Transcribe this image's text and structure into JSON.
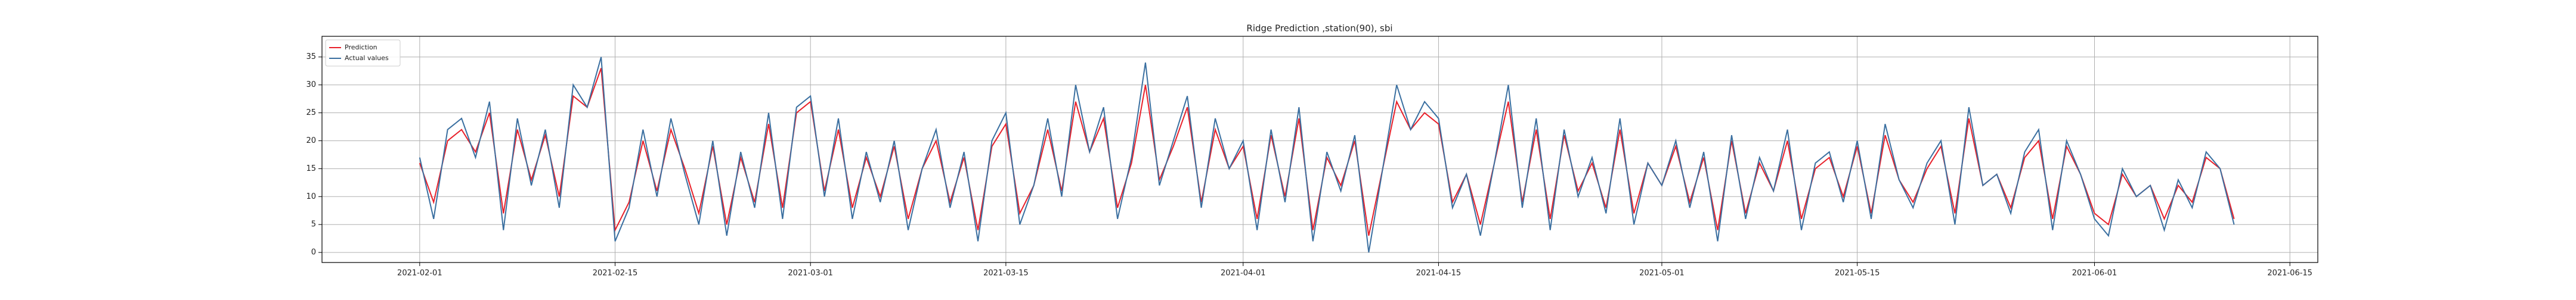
{
  "chart_data": {
    "type": "line",
    "title": "Ridge Prediction ,station(90), sbi",
    "x": [
      "2021-02-01",
      "2021-02-02",
      "2021-02-03",
      "2021-02-04",
      "2021-02-05",
      "2021-02-06",
      "2021-02-07",
      "2021-02-08",
      "2021-02-09",
      "2021-02-10",
      "2021-02-11",
      "2021-02-12",
      "2021-02-13",
      "2021-02-14",
      "2021-02-15",
      "2021-02-16",
      "2021-02-17",
      "2021-02-18",
      "2021-02-19",
      "2021-02-20",
      "2021-02-21",
      "2021-02-22",
      "2021-02-23",
      "2021-02-24",
      "2021-02-25",
      "2021-02-26",
      "2021-02-27",
      "2021-02-28",
      "2021-03-01",
      "2021-03-02",
      "2021-03-03",
      "2021-03-04",
      "2021-03-05",
      "2021-03-06",
      "2021-03-07",
      "2021-03-08",
      "2021-03-09",
      "2021-03-10",
      "2021-03-11",
      "2021-03-12",
      "2021-03-13",
      "2021-03-14",
      "2021-03-15",
      "2021-03-16",
      "2021-03-17",
      "2021-03-18",
      "2021-03-19",
      "2021-03-20",
      "2021-03-21",
      "2021-03-22",
      "2021-03-23",
      "2021-03-24",
      "2021-03-25",
      "2021-03-26",
      "2021-03-27",
      "2021-03-28",
      "2021-03-29",
      "2021-03-30",
      "2021-03-31",
      "2021-04-01",
      "2021-04-02",
      "2021-04-03",
      "2021-04-04",
      "2021-04-05",
      "2021-04-06",
      "2021-04-07",
      "2021-04-08",
      "2021-04-09",
      "2021-04-10",
      "2021-04-11",
      "2021-04-12",
      "2021-04-13",
      "2021-04-14",
      "2021-04-15",
      "2021-04-16",
      "2021-04-17",
      "2021-04-18",
      "2021-04-19",
      "2021-04-20",
      "2021-04-21",
      "2021-04-22",
      "2021-04-23",
      "2021-04-24",
      "2021-04-25",
      "2021-04-26",
      "2021-04-27",
      "2021-04-28",
      "2021-04-29",
      "2021-04-30",
      "2021-05-01",
      "2021-05-02",
      "2021-05-03",
      "2021-05-04",
      "2021-05-05",
      "2021-05-06",
      "2021-05-07",
      "2021-05-08",
      "2021-05-09",
      "2021-05-10",
      "2021-05-11",
      "2021-05-12",
      "2021-05-13",
      "2021-05-14",
      "2021-05-15",
      "2021-05-16",
      "2021-05-17",
      "2021-05-18",
      "2021-05-19",
      "2021-05-20",
      "2021-05-21",
      "2021-05-22",
      "2021-05-23",
      "2021-05-24",
      "2021-05-25",
      "2021-05-26",
      "2021-05-27",
      "2021-05-28",
      "2021-05-29",
      "2021-05-30",
      "2021-05-31",
      "2021-06-01",
      "2021-06-02",
      "2021-06-03",
      "2021-06-04",
      "2021-06-05",
      "2021-06-06",
      "2021-06-07",
      "2021-06-08",
      "2021-06-09",
      "2021-06-10",
      "2021-06-11"
    ],
    "series": [
      {
        "name": "Prediction",
        "color": "#e8202a",
        "values": [
          16,
          9,
          20,
          22,
          18,
          25,
          7,
          22,
          13,
          21,
          10,
          28,
          26,
          33,
          4,
          9,
          20,
          11,
          22,
          15,
          7,
          19,
          5,
          17,
          9,
          23,
          8,
          25,
          27,
          11,
          22,
          8,
          17,
          10,
          19,
          6,
          15,
          20,
          9,
          17,
          4,
          19,
          23,
          7,
          12,
          22,
          11,
          27,
          18,
          24,
          8,
          16,
          30,
          13,
          19,
          26,
          9,
          22,
          15,
          19,
          6,
          21,
          10,
          24,
          4,
          17,
          12,
          20,
          3,
          15,
          27,
          22,
          25,
          23,
          9,
          14,
          5,
          16,
          27,
          9,
          22,
          6,
          21,
          11,
          16,
          8,
          22,
          7,
          16,
          12,
          19,
          9,
          17,
          4,
          20,
          7,
          16,
          11,
          20,
          6,
          15,
          17,
          10,
          19,
          7,
          21,
          13,
          9,
          15,
          19,
          7,
          24,
          12,
          14,
          8,
          17,
          20,
          6,
          19,
          14,
          7,
          5,
          14,
          10,
          12,
          6,
          12,
          9,
          17,
          15,
          6
        ]
      },
      {
        "name": "Actual values",
        "color": "#3a6fa0",
        "values": [
          17,
          6,
          22,
          24,
          17,
          27,
          4,
          24,
          12,
          22,
          8,
          30,
          26,
          35,
          2,
          8,
          22,
          10,
          24,
          14,
          5,
          20,
          3,
          18,
          8,
          25,
          6,
          26,
          28,
          10,
          24,
          6,
          18,
          9,
          20,
          4,
          15,
          22,
          8,
          18,
          2,
          20,
          25,
          5,
          12,
          24,
          10,
          30,
          18,
          26,
          6,
          17,
          34,
          12,
          20,
          28,
          8,
          24,
          15,
          20,
          4,
          22,
          9,
          26,
          2,
          18,
          11,
          21,
          0,
          15,
          30,
          22,
          27,
          24,
          8,
          14,
          3,
          16,
          30,
          8,
          24,
          4,
          22,
          10,
          17,
          7,
          24,
          5,
          16,
          12,
          20,
          8,
          18,
          2,
          21,
          6,
          17,
          11,
          22,
          4,
          16,
          18,
          9,
          20,
          6,
          23,
          13,
          8,
          16,
          20,
          5,
          26,
          12,
          14,
          7,
          18,
          22,
          4,
          20,
          14,
          6,
          3,
          15,
          10,
          12,
          4,
          13,
          8,
          18,
          15,
          5
        ]
      }
    ],
    "xlim": [
      "2021-01-25",
      "2021-06-17"
    ],
    "xticks": [
      "2021-02-01",
      "2021-02-15",
      "2021-03-01",
      "2021-03-15",
      "2021-04-01",
      "2021-04-15",
      "2021-05-01",
      "2021-05-15",
      "2021-06-01",
      "2021-06-15"
    ],
    "ylim": [
      -1.8,
      38.7
    ],
    "yticks": [
      0,
      5,
      10,
      15,
      20,
      25,
      30,
      35
    ],
    "grid": true,
    "legend": "upper-left"
  }
}
